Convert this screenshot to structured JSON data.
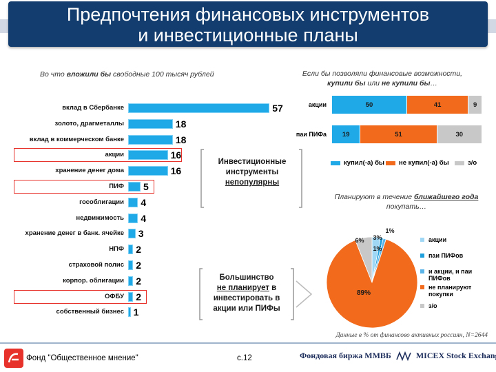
{
  "title": {
    "line1": "Предпочтения финансовых инструментов",
    "line2": "и инвестиционные планы"
  },
  "left_note": {
    "pre": "Во что ",
    "emph": "вложили бы",
    "post": " свободные 100 тысяч рублей"
  },
  "right_note": {
    "line1": "Если бы позволяли финансовые возможности,",
    "line2_emph1": "купили бы",
    "line2_mid": " или ",
    "line2_emph2": "не купили бы",
    "line2_end": "…"
  },
  "plan_note": {
    "line1_pre": "Планируют в течение ",
    "line1_emph": "ближайшего года",
    "line2": "покупать…"
  },
  "callout1": {
    "l1": "Инвестиционные",
    "l2": "инструменты",
    "l3": "непопулярны"
  },
  "callout2": {
    "l1": "Большинство",
    "l2": "не планирует",
    "l2_tail": " в",
    "l3": "инвестировать в",
    "l4": "акции или ПИФы"
  },
  "source": "Данные в % от финансово активных россиян, N=2644",
  "footer": {
    "org": "Фонд \"Общественное мнение\"",
    "page": "с.12",
    "exchange": "Фондовая биржа ММВБ",
    "micex": "MICEX Stock Exchange"
  },
  "colors": {
    "bar": "#1fa9e6",
    "bought": "#1fa9e6",
    "not_bought": "#f26a1b",
    "no_answer": "#c8c8c8",
    "highlight": "#e6322b"
  },
  "highlighted_categories": [
    "акции",
    "ПИФ",
    "ОФБУ"
  ],
  "chart_data": [
    {
      "type": "bar",
      "orientation": "horizontal",
      "title": "Во что вложили бы свободные 100 тысяч рублей",
      "categories": [
        "вклад в Сбербанке",
        "золото, драгметаллы",
        "вклад в коммерческом банке",
        "акции",
        "хранение денег дома",
        "ПИФ",
        "гособлигации",
        "недвижимость",
        "хранение денег в банк. ячейке",
        "НПФ",
        "страховой полис",
        "корпор. облигации",
        "ОФБУ",
        "собственный бизнес"
      ],
      "values": [
        57,
        18,
        18,
        16,
        16,
        5,
        4,
        4,
        3,
        2,
        2,
        2,
        2,
        1
      ],
      "xlim": [
        0,
        60
      ]
    },
    {
      "type": "bar",
      "stacked": true,
      "orientation": "horizontal",
      "title": "Если бы позволяли финансовые возможности, купили бы или не купили бы…",
      "categories": [
        "акции",
        "паи ПИФа"
      ],
      "series": [
        {
          "name": "купил(-а) бы",
          "values": [
            50,
            19
          ]
        },
        {
          "name": "не купил(-а) бы",
          "values": [
            41,
            51
          ]
        },
        {
          "name": "з/о",
          "values": [
            9,
            30
          ]
        }
      ]
    },
    {
      "type": "pie",
      "title": "Планируют в течение ближайшего года покупать…",
      "labels": [
        "акции",
        "паи ПИФов",
        "и акции, и паи ПИФов",
        "не планируют покупки",
        "з/о"
      ],
      "values": [
        3,
        1,
        1,
        89,
        6
      ],
      "value_labels": [
        "3%",
        "1%",
        "1%",
        "89%",
        "6%"
      ]
    }
  ]
}
